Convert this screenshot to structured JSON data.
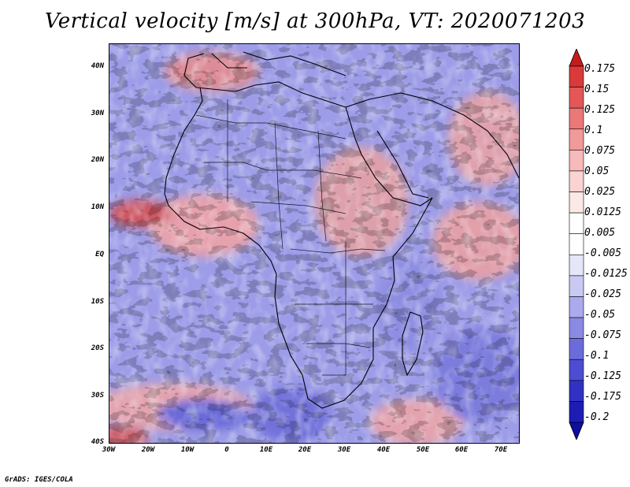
{
  "title": "Vertical velocity [m/s] at 300hPa, VT: 2020071203",
  "credit": "GrADS: IGES/COLA",
  "map": {
    "lon_range": [
      -30,
      75
    ],
    "lat_range": [
      -40,
      45
    ],
    "lat_ticks": [
      "40N",
      "30N",
      "20N",
      "10N",
      "EQ",
      "10S",
      "20S",
      "30S",
      "40S"
    ],
    "lat_values": [
      40,
      30,
      20,
      10,
      0,
      -10,
      -20,
      -30,
      -40
    ],
    "lon_ticks": [
      "30W",
      "20W",
      "10W",
      "0",
      "10E",
      "20E",
      "30E",
      "40E",
      "50E",
      "60E",
      "70E"
    ],
    "lon_values": [
      -30,
      -20,
      -10,
      0,
      10,
      20,
      30,
      40,
      50,
      60,
      70
    ]
  },
  "colorbar": {
    "labels": [
      "0.175",
      "0.15",
      "0.125",
      "0.1",
      "0.075",
      "0.05",
      "0.025",
      "0.0125",
      "0.005",
      "-0.005",
      "-0.0125",
      "-0.025",
      "-0.05",
      "-0.075",
      "-0.1",
      "-0.125",
      "-0.175",
      "-0.2"
    ],
    "colors": [
      "#c51b1b",
      "#d93a3a",
      "#e35757",
      "#ec7777",
      "#f29999",
      "#f7b9b9",
      "#fbd3d3",
      "#fde8e8",
      "#ffffff",
      "#ffffff",
      "#e6e6fa",
      "#c9c9f3",
      "#aaaaec",
      "#8a8ae4",
      "#6b6bdb",
      "#4d4dd2",
      "#3131c4",
      "#1d1db5",
      "#0e0ea0"
    ]
  }
}
